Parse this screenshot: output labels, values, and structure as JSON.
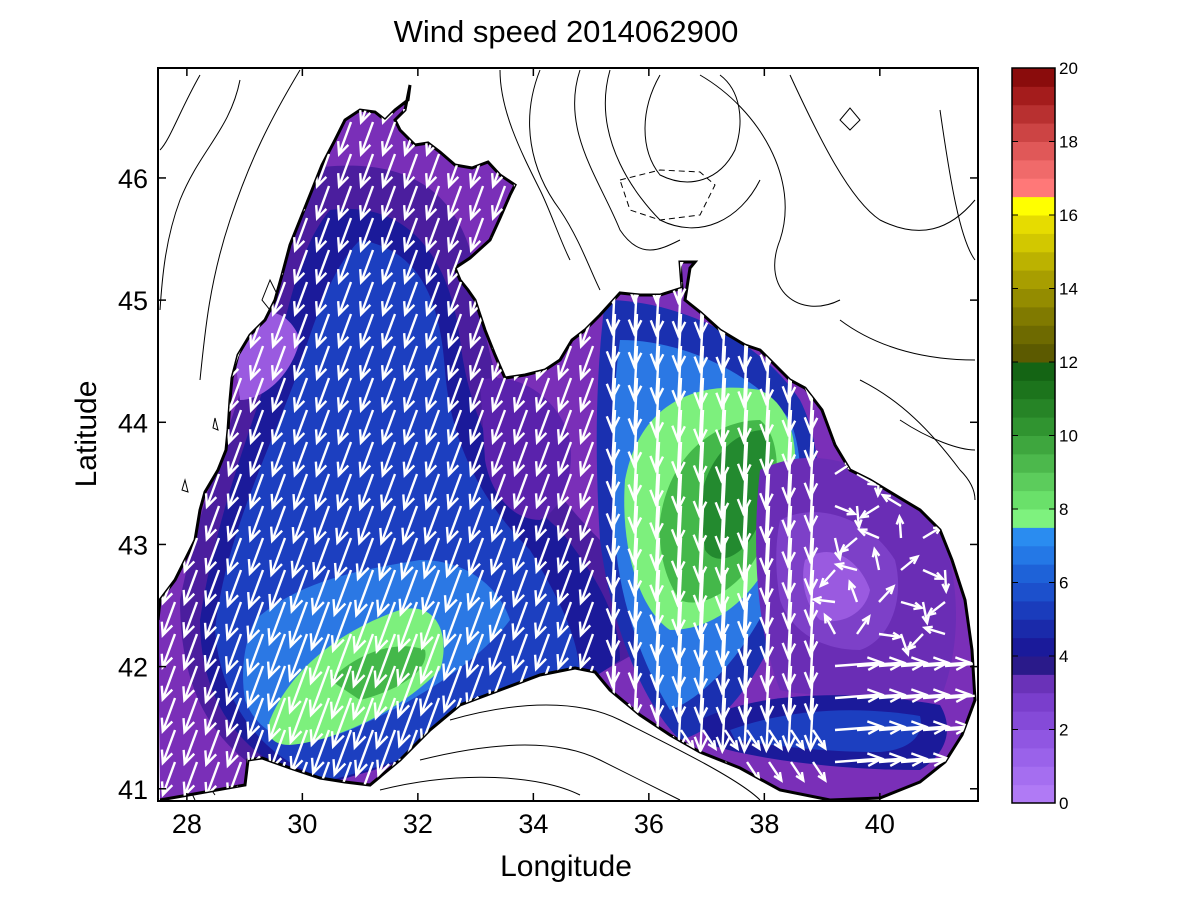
{
  "chart_data": {
    "type": "contour",
    "title": "Wind speed 2014062900",
    "xlabel": "Longitude",
    "ylabel": "Latitude",
    "xlim": [
      27.5,
      41.7
    ],
    "ylim": [
      40.9,
      46.9
    ],
    "xticks": [
      28,
      30,
      32,
      34,
      36,
      38,
      40
    ],
    "yticks": [
      41,
      42,
      43,
      44,
      45,
      46
    ],
    "colorbar": {
      "min": 0,
      "max": 20,
      "ticks": [
        0,
        2,
        4,
        6,
        8,
        10,
        12,
        14,
        16,
        18,
        20
      ],
      "placement": "right"
    },
    "grid": false,
    "wind_speed_peaks": [
      {
        "lon": 37.4,
        "lat": 43.5,
        "value": 10
      },
      {
        "lon": 31.8,
        "lat": 42.1,
        "value": 9
      },
      {
        "lon": 39.1,
        "lat": 42.6,
        "value": 1
      }
    ],
    "vector_field": "white arrows showing wind direction; predominantly southward over the sea"
  }
}
